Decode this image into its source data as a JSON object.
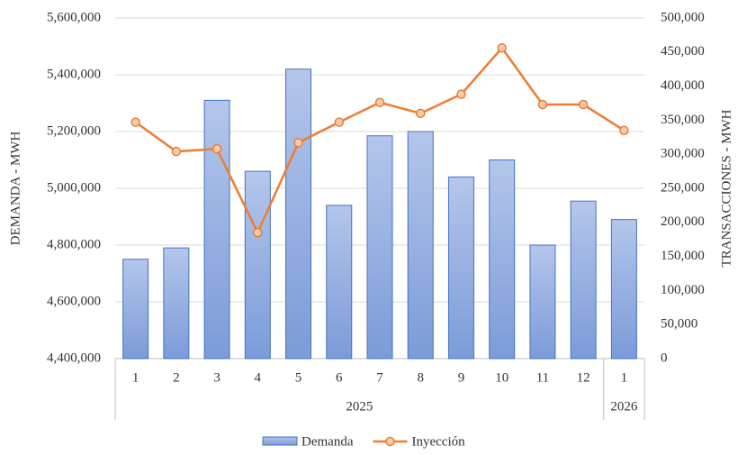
{
  "chart_data": {
    "type": "bar-line",
    "y_label": "DEMANDA - MWH",
    "y2_label": "TRANSACCIONES - MWH",
    "categories": [
      "1",
      "2",
      "3",
      "4",
      "5",
      "6",
      "7",
      "8",
      "9",
      "10",
      "11",
      "12",
      "1"
    ],
    "groups": [
      {
        "label": "2025",
        "count": 12
      },
      {
        "label": "2026",
        "count": 1
      }
    ],
    "series": [
      {
        "name": "Demanda",
        "type": "bar",
        "color": "#4472c4",
        "values": [
          4750000,
          4790000,
          5310000,
          5060000,
          5420000,
          4940000,
          5185000,
          5200000,
          5040000,
          5100000,
          4800000,
          4955000,
          4890000
        ]
      },
      {
        "name": "Inyección",
        "type": "line",
        "axis": "y2",
        "color": "#ed7d31",
        "values": [
          347000,
          304000,
          308000,
          185000,
          317000,
          347000,
          376000,
          360000,
          388000,
          456000,
          373000,
          373000,
          335000
        ]
      }
    ],
    "ylim": [
      4400000,
      5600000
    ],
    "yticks": [
      {
        "value": 4400000,
        "label": "4,400,000"
      },
      {
        "value": 4600000,
        "label": "4,600,000"
      },
      {
        "value": 4800000,
        "label": "4,800,000"
      },
      {
        "value": 5000000,
        "label": "5,000,000"
      },
      {
        "value": 5200000,
        "label": "5,200,000"
      },
      {
        "value": 5400000,
        "label": "5,400,000"
      },
      {
        "value": 5600000,
        "label": "5,600,000"
      }
    ],
    "y2lim": [
      0,
      500000
    ],
    "y2ticks": [
      0,
      {
        "value": 50000,
        "label": "50,000"
      },
      {
        "value": 100000,
        "label": "100,000"
      },
      {
        "value": 150000,
        "label": "150,000"
      },
      {
        "value": 200000,
        "label": "200,000"
      },
      {
        "value": 250000,
        "label": "250,000"
      },
      {
        "value": 300000,
        "label": "300,000"
      },
      {
        "value": 350000,
        "label": "350,000"
      },
      {
        "value": 400000,
        "label": "400,000"
      },
      {
        "value": 450000,
        "label": "450,000"
      },
      {
        "value": 500000,
        "label": "500,000"
      }
    ],
    "grid": true
  }
}
